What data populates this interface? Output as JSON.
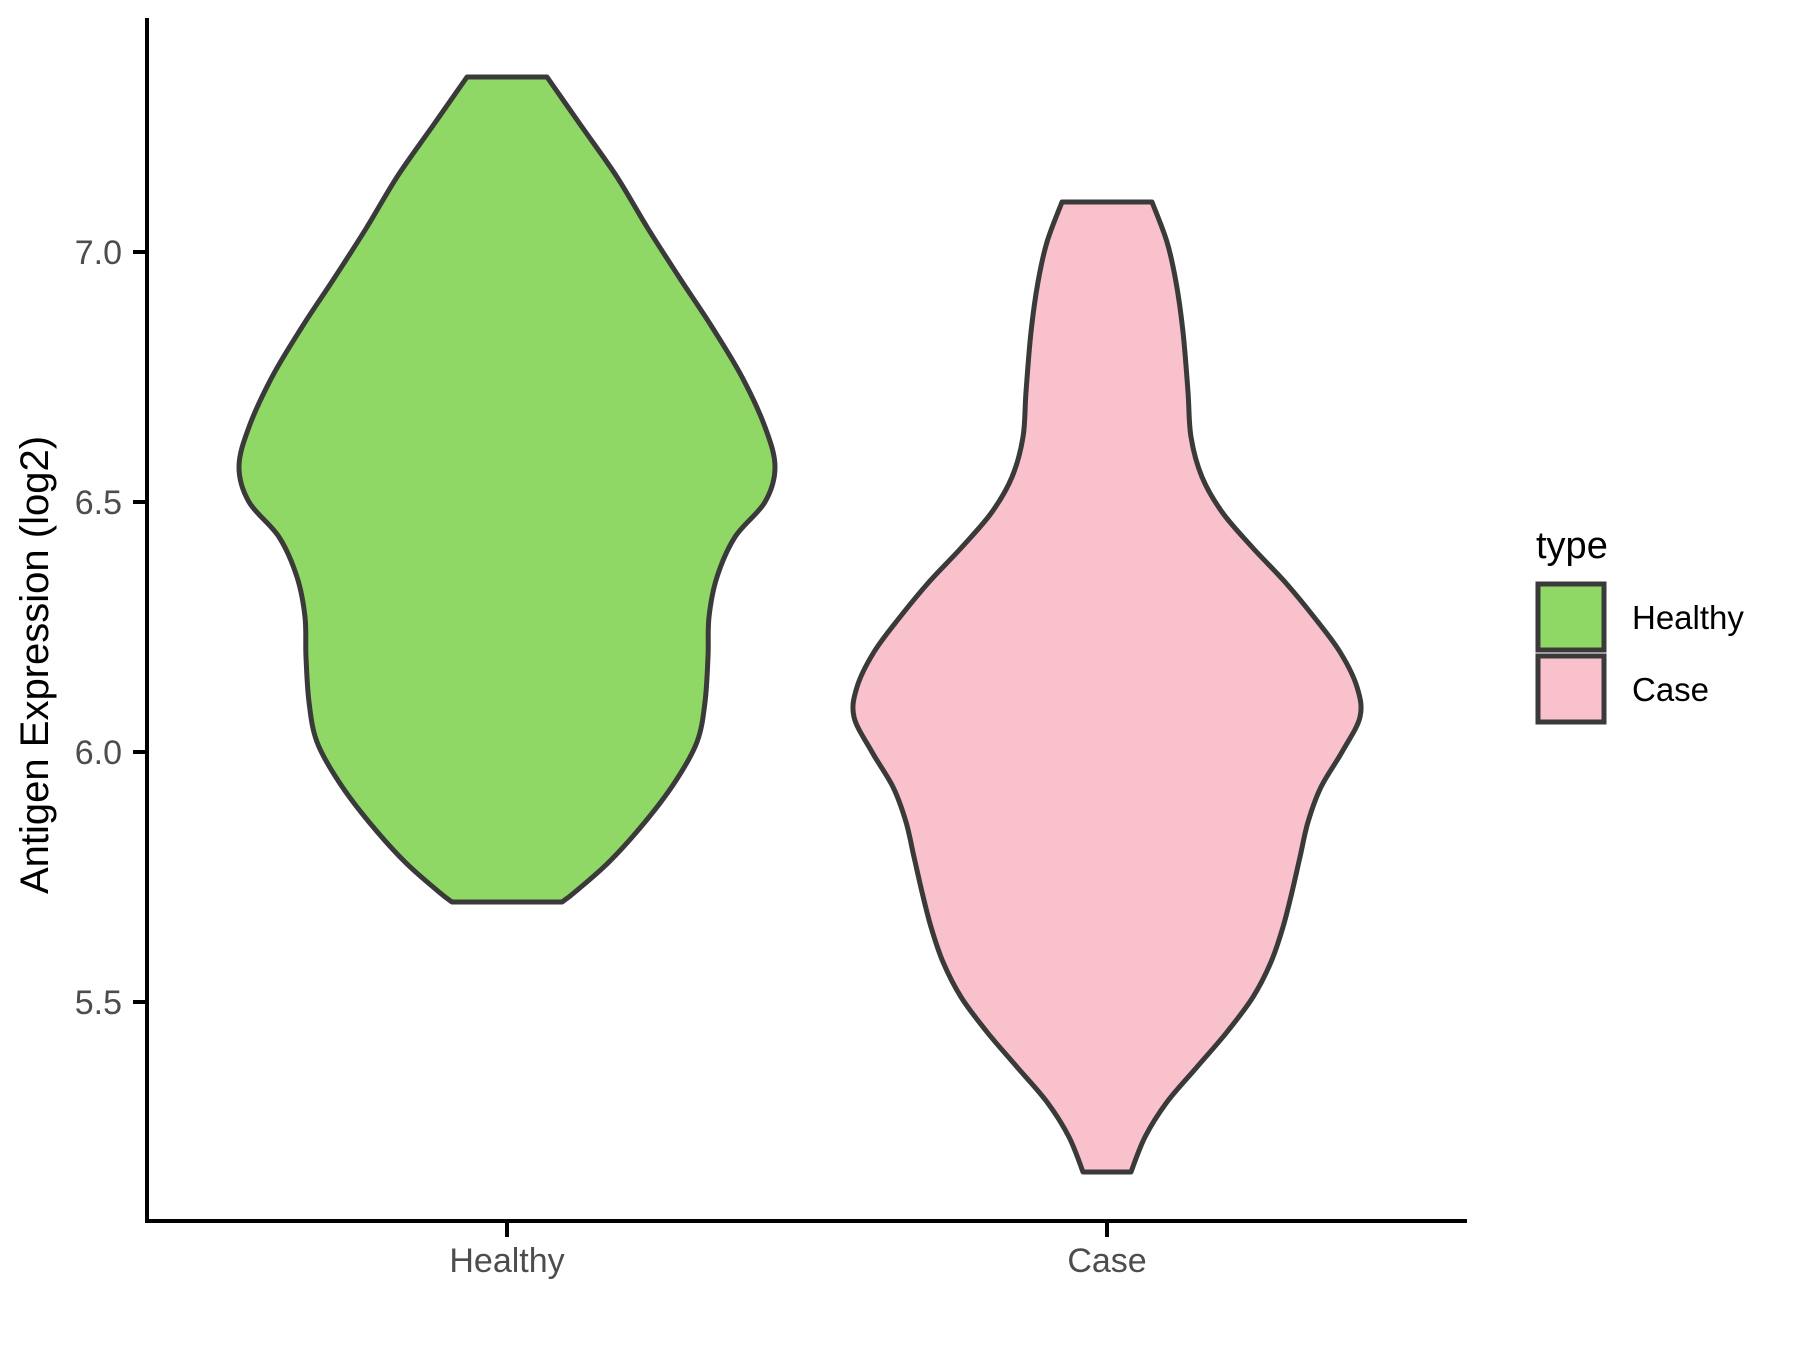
{
  "chart_data": {
    "type": "violin",
    "title": "",
    "xlabel": "",
    "ylabel": "Antigen Expression (log2)",
    "categories": [
      "Healthy",
      "Case"
    ],
    "yticks": [
      "5.5",
      "6.0",
      "6.5",
      "7.0"
    ],
    "ylim": [
      5.05,
      7.45
    ],
    "grid": "off",
    "legend": {
      "title": "type",
      "position": "right",
      "entries": [
        {
          "label": "Healthy",
          "color": "#90D865"
        },
        {
          "label": "Case",
          "color": "#F8C1CC"
        }
      ]
    },
    "series": [
      {
        "name": "Healthy",
        "color": "#90D865",
        "outline": "#3A3A3A",
        "value_range": [
          5.7,
          7.35
        ],
        "profile": [
          [
            7.35,
            40
          ],
          [
            7.25,
            75
          ],
          [
            7.15,
            110
          ],
          [
            7.05,
            140
          ],
          [
            6.95,
            172
          ],
          [
            6.85,
            205
          ],
          [
            6.75,
            235
          ],
          [
            6.65,
            258
          ],
          [
            6.57,
            268
          ],
          [
            6.5,
            258
          ],
          [
            6.43,
            228
          ],
          [
            6.35,
            210
          ],
          [
            6.27,
            202
          ],
          [
            6.19,
            201
          ],
          [
            6.1,
            198
          ],
          [
            6.02,
            190
          ],
          [
            5.94,
            168
          ],
          [
            5.86,
            138
          ],
          [
            5.78,
            102
          ],
          [
            5.72,
            68
          ],
          [
            5.7,
            55
          ]
        ]
      },
      {
        "name": "Case",
        "color": "#F8C1CC",
        "outline": "#3A3A3A",
        "value_range": [
          5.15,
          7.1
        ],
        "profile": [
          [
            7.1,
            45
          ],
          [
            7.02,
            60
          ],
          [
            6.94,
            69
          ],
          [
            6.84,
            76
          ],
          [
            6.72,
            81
          ],
          [
            6.63,
            84
          ],
          [
            6.55,
            95
          ],
          [
            6.48,
            115
          ],
          [
            6.41,
            145
          ],
          [
            6.34,
            178
          ],
          [
            6.27,
            207
          ],
          [
            6.2,
            233
          ],
          [
            6.13,
            250
          ],
          [
            6.07,
            253
          ],
          [
            6.0,
            235
          ],
          [
            5.93,
            214
          ],
          [
            5.86,
            201
          ],
          [
            5.79,
            193
          ],
          [
            5.72,
            185
          ],
          [
            5.65,
            176
          ],
          [
            5.58,
            164
          ],
          [
            5.51,
            146
          ],
          [
            5.44,
            120
          ],
          [
            5.37,
            90
          ],
          [
            5.3,
            60
          ],
          [
            5.23,
            38
          ],
          [
            5.16,
            24
          ]
        ]
      }
    ]
  }
}
